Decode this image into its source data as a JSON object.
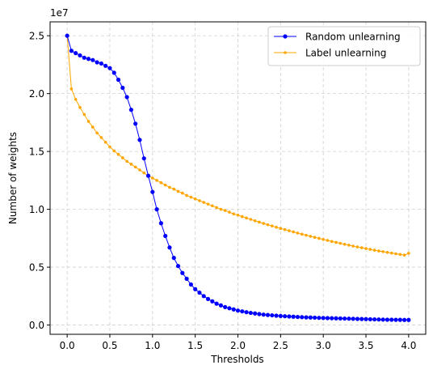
{
  "chart_data": {
    "type": "line",
    "xlabel": "Thresholds",
    "ylabel": "Number of weights",
    "scale_label": "1e7",
    "xlim": [
      -0.2,
      4.2
    ],
    "ylim": [
      -0.08,
      2.62
    ],
    "y_scale": 10000000,
    "grid": true,
    "legend_position": "upper right",
    "x_ticks": [
      {
        "value": 0.0,
        "label": "0.0"
      },
      {
        "value": 0.5,
        "label": "0.5"
      },
      {
        "value": 1.0,
        "label": "1.0"
      },
      {
        "value": 1.5,
        "label": "1.5"
      },
      {
        "value": 2.0,
        "label": "2.0"
      },
      {
        "value": 2.5,
        "label": "2.5"
      },
      {
        "value": 3.0,
        "label": "3.0"
      },
      {
        "value": 3.5,
        "label": "3.5"
      },
      {
        "value": 4.0,
        "label": "4.0"
      }
    ],
    "y_ticks": [
      {
        "value": 0.0,
        "label": "0.0"
      },
      {
        "value": 0.5,
        "label": "0.5"
      },
      {
        "value": 1.0,
        "label": "1.0"
      },
      {
        "value": 1.5,
        "label": "1.5"
      },
      {
        "value": 2.0,
        "label": "2.0"
      },
      {
        "value": 2.5,
        "label": "2.5"
      }
    ],
    "x": [
      0.0,
      0.05,
      0.1,
      0.15,
      0.2,
      0.25,
      0.3,
      0.35,
      0.4,
      0.45,
      0.5,
      0.55,
      0.6,
      0.65,
      0.7,
      0.75,
      0.8,
      0.85,
      0.9,
      0.95,
      1.0,
      1.05,
      1.1,
      1.15,
      1.2,
      1.25,
      1.3,
      1.35,
      1.4,
      1.45,
      1.5,
      1.55,
      1.6,
      1.65,
      1.7,
      1.75,
      1.8,
      1.85,
      1.9,
      1.95,
      2.0,
      2.05,
      2.1,
      2.15,
      2.2,
      2.25,
      2.3,
      2.35,
      2.4,
      2.45,
      2.5,
      2.55,
      2.6,
      2.65,
      2.7,
      2.75,
      2.8,
      2.85,
      2.9,
      2.95,
      3.0,
      3.05,
      3.1,
      3.15,
      3.2,
      3.25,
      3.3,
      3.35,
      3.4,
      3.45,
      3.5,
      3.55,
      3.6,
      3.65,
      3.7,
      3.75,
      3.8,
      3.85,
      3.9,
      3.95,
      4.0
    ],
    "series": [
      {
        "name": "Random unlearning",
        "color": "#0000ff",
        "marker": "circle",
        "values": [
          2.5,
          2.37,
          2.35,
          2.33,
          2.31,
          2.3,
          2.29,
          2.27,
          2.26,
          2.24,
          2.22,
          2.18,
          2.12,
          2.05,
          1.97,
          1.86,
          1.74,
          1.6,
          1.44,
          1.29,
          1.15,
          1.0,
          0.88,
          0.77,
          0.67,
          0.58,
          0.51,
          0.45,
          0.4,
          0.35,
          0.31,
          0.28,
          0.25,
          0.225,
          0.205,
          0.185,
          0.17,
          0.155,
          0.145,
          0.135,
          0.125,
          0.118,
          0.111,
          0.105,
          0.1,
          0.095,
          0.09,
          0.087,
          0.084,
          0.081,
          0.078,
          0.076,
          0.074,
          0.072,
          0.07,
          0.068,
          0.066,
          0.065,
          0.064,
          0.062,
          0.061,
          0.06,
          0.059,
          0.058,
          0.057,
          0.056,
          0.055,
          0.054,
          0.053,
          0.052,
          0.051,
          0.05,
          0.049,
          0.048,
          0.047,
          0.046,
          0.046,
          0.045,
          0.045,
          0.044,
          0.044
        ]
      },
      {
        "name": "Label unlearning",
        "color": "#ffa500",
        "marker": "circle",
        "values": [
          2.5,
          2.04,
          1.95,
          1.88,
          1.82,
          1.76,
          1.71,
          1.66,
          1.62,
          1.58,
          1.54,
          1.505,
          1.475,
          1.445,
          1.415,
          1.39,
          1.365,
          1.34,
          1.315,
          1.29,
          1.27,
          1.25,
          1.23,
          1.21,
          1.19,
          1.175,
          1.155,
          1.14,
          1.12,
          1.105,
          1.09,
          1.075,
          1.06,
          1.045,
          1.03,
          1.015,
          1.0,
          0.99,
          0.975,
          0.96,
          0.95,
          0.937,
          0.925,
          0.913,
          0.901,
          0.889,
          0.878,
          0.867,
          0.856,
          0.845,
          0.835,
          0.825,
          0.815,
          0.805,
          0.795,
          0.785,
          0.776,
          0.767,
          0.758,
          0.749,
          0.74,
          0.731,
          0.722,
          0.714,
          0.706,
          0.698,
          0.69,
          0.682,
          0.675,
          0.668,
          0.661,
          0.654,
          0.647,
          0.64,
          0.634,
          0.628,
          0.622,
          0.616,
          0.61,
          0.604,
          0.62
        ]
      }
    ]
  }
}
